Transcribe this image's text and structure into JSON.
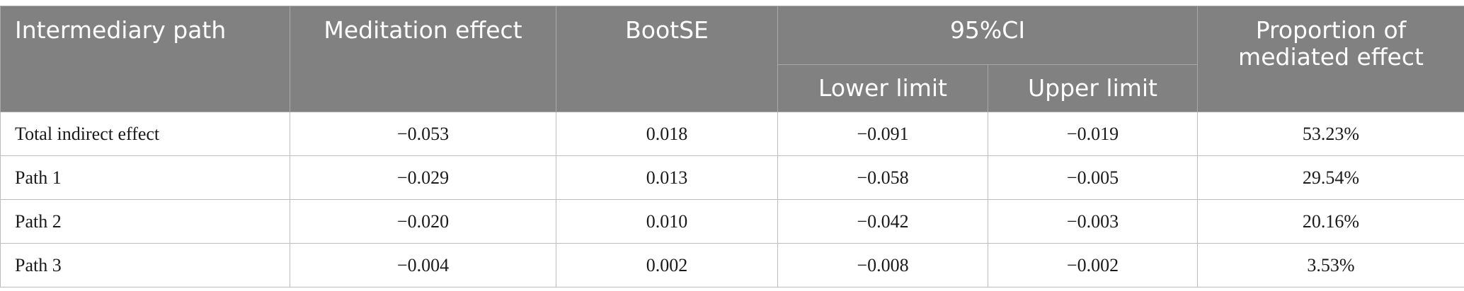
{
  "table": {
    "headers": {
      "path": "Intermediary path",
      "effect": "Meditation effect",
      "bootse": "BootSE",
      "ci": "95%CI",
      "lower": "Lower limit",
      "upper": "Upper limit",
      "proportion": "Proportion of mediated effect"
    },
    "rows": [
      {
        "path": "Total indirect effect",
        "effect": "−0.053",
        "bootse": "0.018",
        "lower": "−0.091",
        "upper": "−0.019",
        "proportion": "53.23%"
      },
      {
        "path": "Path 1",
        "effect": "−0.029",
        "bootse": "0.013",
        "lower": "−0.058",
        "upper": "−0.005",
        "proportion": "29.54%"
      },
      {
        "path": "Path 2",
        "effect": "−0.020",
        "bootse": "0.010",
        "lower": "−0.042",
        "upper": "−0.003",
        "proportion": "20.16%"
      },
      {
        "path": "Path 3",
        "effect": "−0.004",
        "bootse": "0.002",
        "lower": "−0.008",
        "upper": "−0.002",
        "proportion": "3.53%"
      }
    ],
    "colors": {
      "header_bg": "#808180",
      "header_text": "#ffffff",
      "border": "#bdbdbd"
    }
  }
}
